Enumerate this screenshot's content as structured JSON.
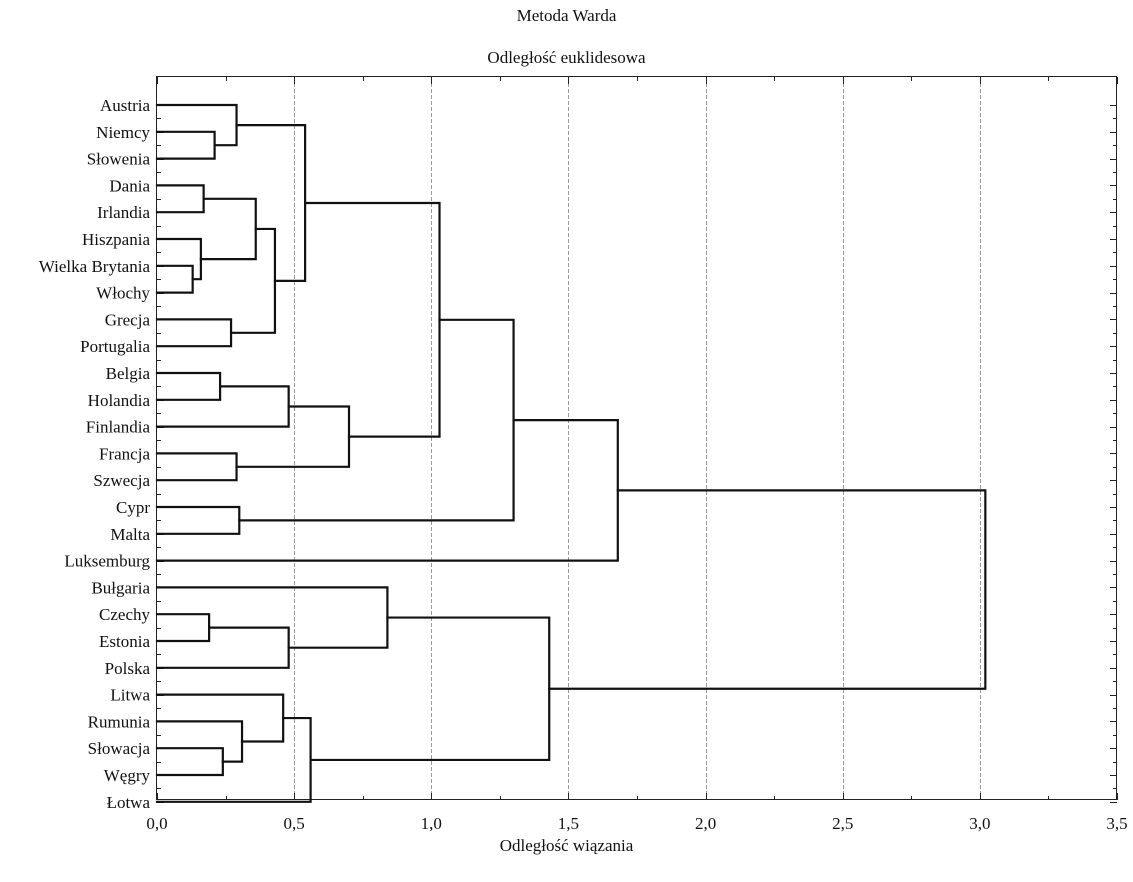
{
  "chart_data": {
    "type": "dendrogram",
    "title": "Metoda Warda",
    "subtitle": "Odległość euklidesowa",
    "xlabel": "Odległość wiązania",
    "ylabel": "",
    "xlim": [
      0,
      3.5
    ],
    "x_ticks": [
      "0,0",
      "0,5",
      "1,0",
      "1,5",
      "2,0",
      "2,5",
      "3,0",
      "3,5"
    ],
    "x_tick_values": [
      0,
      0.5,
      1.0,
      1.5,
      2.0,
      2.5,
      3.0,
      3.5
    ],
    "grid": "vertical dashed at major ticks",
    "leaves": [
      "Austria",
      "Niemcy",
      "Słowenia",
      "Dania",
      "Irlandia",
      "Hiszpania",
      "Wielka Brytania",
      "Włochy",
      "Grecja",
      "Portugalia",
      "Belgia",
      "Holandia",
      "Finlandia",
      "Francja",
      "Szwecja",
      "Cypr",
      "Malta",
      "Luksemburg",
      "Bułgaria",
      "Czechy",
      "Estonia",
      "Polska",
      "Litwa",
      "Rumunia",
      "Słowacja",
      "Węgry",
      "Łotwa"
    ],
    "merges": [
      {
        "a": "L6",
        "b": "L7",
        "height": 0.13
      },
      {
        "a": "L5",
        "b": "M0",
        "height": 0.16
      },
      {
        "a": "L3",
        "b": "L4",
        "height": 0.17
      },
      {
        "a": "L19",
        "b": "L20",
        "height": 0.19
      },
      {
        "a": "L1",
        "b": "L2",
        "height": 0.21
      },
      {
        "a": "L10",
        "b": "L11",
        "height": 0.23
      },
      {
        "a": "L24",
        "b": "L25",
        "height": 0.24
      },
      {
        "a": "L8",
        "b": "L9",
        "height": 0.27
      },
      {
        "a": "L0",
        "b": "M4",
        "height": 0.29
      },
      {
        "a": "L13",
        "b": "L14",
        "height": 0.29
      },
      {
        "a": "L15",
        "b": "L16",
        "height": 0.3
      },
      {
        "a": "L23",
        "b": "M6",
        "height": 0.31
      },
      {
        "a": "M2",
        "b": "M1",
        "height": 0.36
      },
      {
        "a": "M12",
        "b": "M7",
        "height": 0.43
      },
      {
        "a": "L22",
        "b": "M11",
        "height": 0.46
      },
      {
        "a": "M5",
        "b": "L12",
        "height": 0.48
      },
      {
        "a": "M3",
        "b": "L21",
        "height": 0.48
      },
      {
        "a": "M8",
        "b": "M13",
        "height": 0.54
      },
      {
        "a": "M14",
        "b": "L26",
        "height": 0.56
      },
      {
        "a": "M15",
        "b": "M9",
        "height": 0.7
      },
      {
        "a": "L18",
        "b": "M16",
        "height": 0.84
      },
      {
        "a": "M17",
        "b": "M19",
        "height": 1.03
      },
      {
        "a": "M21",
        "b": "M10",
        "height": 1.3
      },
      {
        "a": "M20",
        "b": "M18",
        "height": 1.43
      },
      {
        "a": "M22",
        "b": "L17",
        "height": 1.68
      },
      {
        "a": "M24",
        "b": "M23",
        "height": 3.02
      }
    ]
  }
}
